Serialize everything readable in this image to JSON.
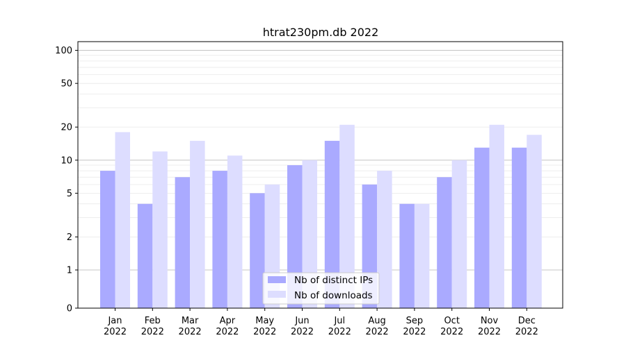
{
  "chart_data": {
    "type": "bar",
    "title": "htrat230pm.db 2022",
    "categories": [
      {
        "month": "Jan",
        "year": "2022"
      },
      {
        "month": "Feb",
        "year": "2022"
      },
      {
        "month": "Mar",
        "year": "2022"
      },
      {
        "month": "Apr",
        "year": "2022"
      },
      {
        "month": "May",
        "year": "2022"
      },
      {
        "month": "Jun",
        "year": "2022"
      },
      {
        "month": "Jul",
        "year": "2022"
      },
      {
        "month": "Aug",
        "year": "2022"
      },
      {
        "month": "Sep",
        "year": "2022"
      },
      {
        "month": "Oct",
        "year": "2022"
      },
      {
        "month": "Nov",
        "year": "2022"
      },
      {
        "month": "Dec",
        "year": "2022"
      }
    ],
    "series": [
      {
        "name": "Nb of distinct IPs",
        "color": "#aaaaff",
        "values": [
          8,
          4,
          7,
          8,
          5,
          9,
          15,
          6,
          4,
          7,
          13,
          13
        ]
      },
      {
        "name": "Nb of downloads",
        "color": "#ddddff",
        "values": [
          18,
          12,
          15,
          11,
          6,
          10,
          21,
          8,
          4,
          10,
          21,
          17
        ]
      }
    ],
    "yscale": "symlog",
    "ylim": [
      0,
      120
    ],
    "yticks": [
      0,
      1,
      2,
      5,
      10,
      20,
      50,
      100
    ],
    "ytick_labels": [
      "0",
      "1",
      "2",
      "5",
      "10",
      "20",
      "50",
      "100"
    ],
    "major_grid_values": [
      1,
      10,
      100
    ],
    "minor_grid_values": [
      2,
      3,
      4,
      5,
      6,
      7,
      8,
      9,
      20,
      30,
      40,
      50,
      60,
      70,
      80,
      90
    ],
    "grid": true,
    "legend_position": "lower-center"
  }
}
